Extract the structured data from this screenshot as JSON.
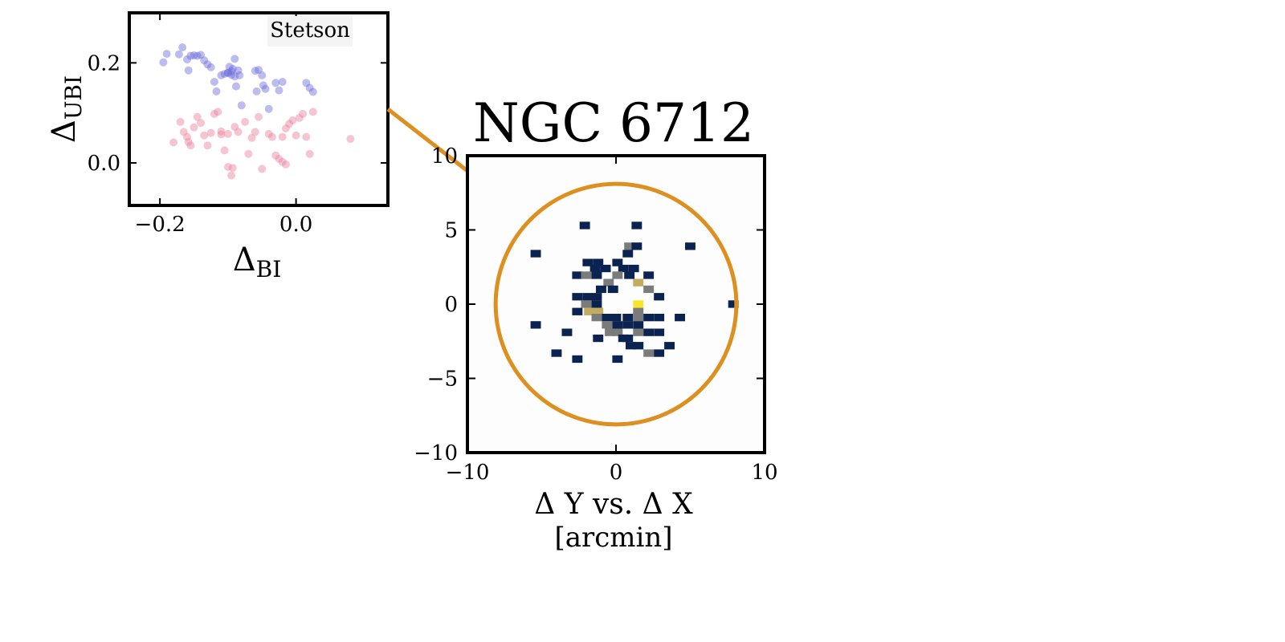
{
  "chart_data": [
    {
      "type": "scatter",
      "title": "",
      "legend_text": "Stetson",
      "xlabel": {
        "main": "Δ",
        "sub": "BI"
      },
      "ylabel": {
        "main": "Δ",
        "sub": "UBI"
      },
      "xlim": [
        -0.245,
        0.135
      ],
      "ylim": [
        -0.085,
        0.3
      ],
      "xticks": [
        {
          "v": -0.2,
          "label": "−0.2"
        },
        {
          "v": 0.0,
          "label": "0.0"
        }
      ],
      "yticks": [
        {
          "v": 0.0,
          "label": "0.0"
        },
        {
          "v": 0.2,
          "label": "0.2"
        }
      ],
      "series": [
        {
          "color": "#6b6bdc",
          "points": [
            [
              -0.195,
              0.201
            ],
            [
              -0.19,
              0.218
            ],
            [
              -0.172,
              0.217
            ],
            [
              -0.167,
              0.231
            ],
            [
              -0.16,
              0.207
            ],
            [
              -0.158,
              0.185
            ],
            [
              -0.155,
              0.214
            ],
            [
              -0.15,
              0.215
            ],
            [
              -0.145,
              0.214
            ],
            [
              -0.14,
              0.216
            ],
            [
              -0.135,
              0.205
            ],
            [
              -0.13,
              0.197
            ],
            [
              -0.125,
              0.191
            ],
            [
              -0.12,
              0.162
            ],
            [
              -0.117,
              0.143
            ],
            [
              -0.11,
              0.175
            ],
            [
              -0.105,
              0.178
            ],
            [
              -0.1,
              0.18
            ],
            [
              -0.098,
              0.192
            ],
            [
              -0.095,
              0.176
            ],
            [
              -0.093,
              0.188
            ],
            [
              -0.09,
              0.173
            ],
            [
              -0.088,
              0.153
            ],
            [
              -0.085,
              0.185
            ],
            [
              -0.083,
              0.175
            ],
            [
              -0.09,
              0.208
            ],
            [
              -0.08,
              0.115
            ],
            [
              -0.06,
              0.184
            ],
            [
              -0.055,
              0.186
            ],
            [
              -0.058,
              0.143
            ],
            [
              -0.048,
              0.155
            ],
            [
              -0.045,
              0.148
            ],
            [
              -0.04,
              0.108
            ],
            [
              -0.03,
              0.16
            ],
            [
              -0.025,
              0.145
            ],
            [
              -0.02,
              0.162
            ],
            [
              -0.05,
              0.175
            ],
            [
              0.015,
              0.16
            ],
            [
              0.02,
              0.15
            ],
            [
              0.025,
              0.142
            ],
            [
              -0.1,
              0.18
            ],
            [
              -0.095,
              0.183
            ]
          ]
        },
        {
          "color": "#e8809c",
          "points": [
            [
              -0.18,
              0.041
            ],
            [
              -0.17,
              0.082
            ],
            [
              -0.165,
              0.062
            ],
            [
              -0.16,
              0.052
            ],
            [
              -0.158,
              0.042
            ],
            [
              -0.155,
              0.035
            ],
            [
              -0.15,
              0.071
            ],
            [
              -0.145,
              0.092
            ],
            [
              -0.14,
              0.08
            ],
            [
              -0.135,
              0.055
            ],
            [
              -0.13,
              0.035
            ],
            [
              -0.125,
              0.06
            ],
            [
              -0.12,
              0.098
            ],
            [
              -0.115,
              0.102
            ],
            [
              -0.11,
              0.057
            ],
            [
              -0.105,
              0.025
            ],
            [
              -0.1,
              -0.008
            ],
            [
              -0.095,
              -0.025
            ],
            [
              -0.093,
              -0.01
            ],
            [
              -0.09,
              0.072
            ],
            [
              -0.085,
              0.062
            ],
            [
              -0.075,
              0.082
            ],
            [
              -0.07,
              0.018
            ],
            [
              -0.065,
              0.05
            ],
            [
              -0.06,
              0.062
            ],
            [
              -0.055,
              0.092
            ],
            [
              -0.05,
              -0.012
            ],
            [
              -0.04,
              0.058
            ],
            [
              -0.035,
              0.052
            ],
            [
              -0.03,
              0.015
            ],
            [
              -0.025,
              0.008
            ],
            [
              -0.02,
              0.052
            ],
            [
              -0.015,
              0.069
            ],
            [
              -0.01,
              0.078
            ],
            [
              -0.005,
              0.085
            ],
            [
              0.0,
              0.055
            ],
            [
              0.005,
              0.09
            ],
            [
              0.01,
              0.098
            ],
            [
              0.015,
              0.052
            ],
            [
              0.02,
              0.018
            ],
            [
              0.025,
              0.102
            ],
            [
              0.08,
              0.048
            ],
            [
              -0.02,
              0.002
            ],
            [
              -0.015,
              -0.003
            ],
            [
              -0.1,
              0.058
            ],
            [
              -0.11,
              0.063
            ]
          ]
        }
      ]
    },
    {
      "type": "heatmap",
      "title": "NGC 6712",
      "xlabel": "Δ Y vs. Δ X",
      "xunits": "[arcmin]",
      "xlim": [
        -10,
        10
      ],
      "ylim": [
        -10,
        10
      ],
      "xticks": [
        {
          "v": -10,
          "label": "−10"
        },
        {
          "v": 0,
          "label": "0"
        },
        {
          "v": 10,
          "label": "10"
        }
      ],
      "yticks": [
        {
          "v": -10,
          "label": "−10"
        },
        {
          "v": -5,
          "label": "−5"
        },
        {
          "v": 0,
          "label": "0"
        },
        {
          "v": 5,
          "label": "5"
        },
        {
          "v": 10,
          "label": "10"
        }
      ],
      "bin_size": 0.7,
      "circle": {
        "center": [
          0,
          0
        ],
        "radius": 8.1,
        "color": "#dd9020"
      },
      "colors": {
        "navy": "#0a2350",
        "gray": "#7b7b7b",
        "olive": "#c2ac5e",
        "yellow": "#f6e52a"
      },
      "cells": [
        [
          -2.1,
          5.3,
          "navy"
        ],
        [
          1.4,
          5.3,
          "navy"
        ],
        [
          0.9,
          3.9,
          "gray"
        ],
        [
          1.4,
          3.9,
          "navy"
        ],
        [
          5.0,
          3.9,
          "navy"
        ],
        [
          -5.4,
          3.4,
          "navy"
        ],
        [
          0.8,
          3.4,
          "navy"
        ],
        [
          -1.9,
          2.8,
          "navy"
        ],
        [
          -1.2,
          2.8,
          "navy"
        ],
        [
          0.1,
          2.8,
          "navy"
        ],
        [
          -1.4,
          2.4,
          "navy"
        ],
        [
          -0.7,
          2.4,
          "navy"
        ],
        [
          0.5,
          2.4,
          "navy"
        ],
        [
          1.2,
          2.4,
          "navy"
        ],
        [
          -2.6,
          1.95,
          "navy"
        ],
        [
          -2.0,
          1.95,
          "gray"
        ],
        [
          -1.3,
          1.95,
          "navy"
        ],
        [
          0.1,
          1.95,
          "gray"
        ],
        [
          0.9,
          1.95,
          "navy"
        ],
        [
          2.2,
          1.95,
          "navy"
        ],
        [
          -0.5,
          1.45,
          "gray"
        ],
        [
          1.5,
          1.45,
          "olive"
        ],
        [
          -1.0,
          1.0,
          "navy"
        ],
        [
          -0.2,
          1.0,
          "navy"
        ],
        [
          2.2,
          1.0,
          "gray"
        ],
        [
          -2.6,
          0.5,
          "navy"
        ],
        [
          -1.9,
          0.5,
          "navy"
        ],
        [
          -1.3,
          0.5,
          "navy"
        ],
        [
          2.9,
          0.5,
          "navy"
        ],
        [
          -2.0,
          0.0,
          "gray"
        ],
        [
          -1.3,
          0.0,
          "navy"
        ],
        [
          1.5,
          0.0,
          "yellow"
        ],
        [
          7.9,
          0.0,
          "navy"
        ],
        [
          -2.6,
          -0.5,
          "navy"
        ],
        [
          -1.8,
          -0.5,
          "olive"
        ],
        [
          -1.2,
          -0.5,
          "olive"
        ],
        [
          1.5,
          -0.5,
          "gray"
        ],
        [
          -1.3,
          -0.9,
          "gray"
        ],
        [
          -0.6,
          -0.9,
          "navy"
        ],
        [
          0.0,
          -0.9,
          "navy"
        ],
        [
          0.8,
          -0.9,
          "navy"
        ],
        [
          1.5,
          -0.9,
          "gray"
        ],
        [
          2.2,
          -0.9,
          "navy"
        ],
        [
          2.9,
          -0.9,
          "navy"
        ],
        [
          4.3,
          -0.9,
          "navy"
        ],
        [
          -5.4,
          -1.4,
          "navy"
        ],
        [
          -0.6,
          -1.4,
          "gray"
        ],
        [
          0.1,
          -1.4,
          "navy"
        ],
        [
          0.8,
          -1.4,
          "navy"
        ],
        [
          1.5,
          -1.4,
          "navy"
        ],
        [
          -3.3,
          -1.9,
          "navy"
        ],
        [
          -0.4,
          -1.9,
          "gray"
        ],
        [
          0.1,
          -1.9,
          "gray"
        ],
        [
          1.5,
          -1.9,
          "gray"
        ],
        [
          2.2,
          -1.9,
          "navy"
        ],
        [
          2.9,
          -1.9,
          "navy"
        ],
        [
          -1.2,
          -2.3,
          "navy"
        ],
        [
          0.5,
          -2.3,
          "navy"
        ],
        [
          0.8,
          -2.3,
          "navy"
        ],
        [
          1.0,
          -2.8,
          "navy"
        ],
        [
          1.5,
          -2.8,
          "navy"
        ],
        [
          3.6,
          -2.8,
          "navy"
        ],
        [
          -4.0,
          -3.3,
          "navy"
        ],
        [
          2.2,
          -3.3,
          "gray"
        ],
        [
          2.9,
          -3.3,
          "navy"
        ],
        [
          -2.6,
          -3.7,
          "navy"
        ],
        [
          0.1,
          -3.7,
          "navy"
        ]
      ]
    }
  ]
}
